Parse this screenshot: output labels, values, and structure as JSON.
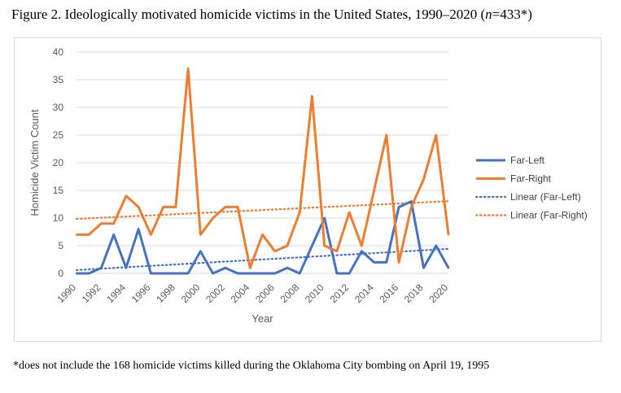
{
  "figure": {
    "title_prefix": "Figure 2. Ideologically motivated homicide victims in the United States, 1990–2020 (",
    "title_n": "n",
    "title_suffix": "=433*)",
    "footnote": "*does not include the 168 homicide victims killed during the Oklahoma City bombing on April 19, 1995"
  },
  "chart_data": {
    "type": "line",
    "title": "",
    "xlabel": "Year",
    "ylabel": "Homicide Victim Count",
    "ylim": [
      0,
      40
    ],
    "yticks": [
      0,
      5,
      10,
      15,
      20,
      25,
      30,
      35,
      40
    ],
    "grid": true,
    "legend_position": "right",
    "x": [
      1990,
      1991,
      1992,
      1993,
      1994,
      1995,
      1996,
      1997,
      1998,
      1999,
      2000,
      2001,
      2002,
      2003,
      2004,
      2005,
      2006,
      2007,
      2008,
      2009,
      2010,
      2011,
      2012,
      2013,
      2014,
      2015,
      2016,
      2017,
      2018,
      2019,
      2020
    ],
    "xtick_labels": [
      "1990",
      "1992",
      "1994",
      "1996",
      "1998",
      "2000",
      "2002",
      "2004",
      "2006",
      "2008",
      "2010",
      "2012",
      "2014",
      "2016",
      "2018",
      "2020"
    ],
    "series": [
      {
        "name": "Far-Left",
        "color": "#4472C4",
        "style": "solid",
        "values": [
          0,
          0,
          1,
          7,
          1,
          8,
          0,
          0,
          0,
          0,
          4,
          0,
          1,
          0,
          0,
          0,
          0,
          1,
          0,
          5,
          10,
          0,
          0,
          4,
          2,
          2,
          12,
          13,
          1,
          5,
          1
        ]
      },
      {
        "name": "Far-Right",
        "color": "#ED7D31",
        "style": "solid",
        "values": [
          7,
          7,
          9,
          9,
          14,
          12,
          7,
          12,
          12,
          37,
          7,
          10,
          12,
          12,
          1,
          7,
          4,
          5,
          11,
          32,
          5,
          4,
          11,
          5,
          15,
          25,
          2,
          12,
          17,
          25,
          7
        ]
      },
      {
        "name": "Linear (Far-Left)",
        "color": "#4472C4",
        "style": "dotted",
        "trend_of": "Far-Left"
      },
      {
        "name": "Linear (Far-Right)",
        "color": "#ED7D31",
        "style": "dotted",
        "trend_of": "Far-Right"
      }
    ]
  }
}
